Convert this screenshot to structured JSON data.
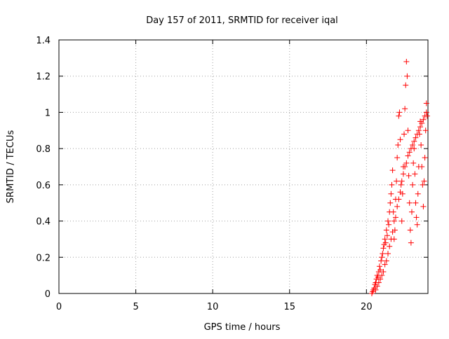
{
  "chart_data": {
    "type": "scatter",
    "title": "Day 157 of 2011, SRMTID for receiver iqal",
    "xlabel": "GPS time / hours",
    "ylabel": "SRMTID / TECUs",
    "xlim": [
      0,
      24
    ],
    "ylim": [
      0,
      1.4
    ],
    "xticks": [
      0,
      5,
      10,
      15,
      20
    ],
    "yticks": [
      0,
      0.2,
      0.4,
      0.6,
      0.8,
      1,
      1.2,
      1.4
    ],
    "xtick_labels": [
      "0",
      "5",
      "10",
      "15",
      "20"
    ],
    "ytick_labels": [
      "0",
      "0.2",
      "0.4",
      "0.6",
      "0.8",
      "1",
      "1.2",
      "1.4"
    ],
    "grid": true,
    "marker": "+",
    "marker_color": "#ff0000",
    "series": [
      {
        "points": [
          [
            20.35,
            0.0
          ],
          [
            20.4,
            0.01
          ],
          [
            20.45,
            0.02
          ],
          [
            20.5,
            0.03
          ],
          [
            20.55,
            0.05
          ],
          [
            20.6,
            0.06
          ],
          [
            20.65,
            0.08
          ],
          [
            20.7,
            0.1
          ],
          [
            20.75,
            0.09
          ],
          [
            20.8,
            0.12
          ],
          [
            20.85,
            0.15
          ],
          [
            20.9,
            0.13
          ],
          [
            20.95,
            0.18
          ],
          [
            21.0,
            0.2
          ],
          [
            21.05,
            0.22
          ],
          [
            21.1,
            0.25
          ],
          [
            21.15,
            0.27
          ],
          [
            21.2,
            0.3
          ],
          [
            21.25,
            0.28
          ],
          [
            21.3,
            0.35
          ],
          [
            21.35,
            0.32
          ],
          [
            21.4,
            0.4
          ],
          [
            21.45,
            0.38
          ],
          [
            21.5,
            0.45
          ],
          [
            21.55,
            0.5
          ],
          [
            21.6,
            0.55
          ],
          [
            21.65,
            0.6
          ],
          [
            21.7,
            0.68
          ],
          [
            21.75,
            0.45
          ],
          [
            21.8,
            0.3
          ],
          [
            21.85,
            0.35
          ],
          [
            21.9,
            0.52
          ],
          [
            21.95,
            0.62
          ],
          [
            22.0,
            0.75
          ],
          [
            22.05,
            0.82
          ],
          [
            22.1,
            0.98
          ],
          [
            22.15,
            1.0
          ],
          [
            22.2,
            0.85
          ],
          [
            22.25,
            0.6
          ],
          [
            22.3,
            0.4
          ],
          [
            22.35,
            0.55
          ],
          [
            22.4,
            0.7
          ],
          [
            22.45,
            0.88
          ],
          [
            22.5,
            1.02
          ],
          [
            22.55,
            1.15
          ],
          [
            22.6,
            1.28
          ],
          [
            22.65,
            1.2
          ],
          [
            22.7,
            0.9
          ],
          [
            22.75,
            0.65
          ],
          [
            22.8,
            0.5
          ],
          [
            22.85,
            0.35
          ],
          [
            22.9,
            0.28
          ],
          [
            22.95,
            0.45
          ],
          [
            23.0,
            0.6
          ],
          [
            23.05,
            0.72
          ],
          [
            23.1,
            0.8
          ],
          [
            23.15,
            0.66
          ],
          [
            23.2,
            0.5
          ],
          [
            23.25,
            0.42
          ],
          [
            23.3,
            0.38
          ],
          [
            23.35,
            0.55
          ],
          [
            23.4,
            0.7
          ],
          [
            23.45,
            0.88
          ],
          [
            23.5,
            0.95
          ],
          [
            23.55,
            0.82
          ],
          [
            23.6,
            0.7
          ],
          [
            23.65,
            0.6
          ],
          [
            23.7,
            0.48
          ],
          [
            23.75,
            0.62
          ],
          [
            23.8,
            0.75
          ],
          [
            23.85,
            0.9
          ],
          [
            23.9,
            1.05
          ],
          [
            23.95,
            0.98
          ],
          [
            20.6,
            0.02
          ],
          [
            20.7,
            0.04
          ],
          [
            20.8,
            0.06
          ],
          [
            20.9,
            0.08
          ],
          [
            21.0,
            0.1
          ],
          [
            21.1,
            0.12
          ],
          [
            21.2,
            0.16
          ],
          [
            21.3,
            0.18
          ],
          [
            21.4,
            0.22
          ],
          [
            21.5,
            0.26
          ],
          [
            21.6,
            0.3
          ],
          [
            21.7,
            0.34
          ],
          [
            21.8,
            0.4
          ],
          [
            21.9,
            0.42
          ],
          [
            22.0,
            0.48
          ],
          [
            22.1,
            0.52
          ],
          [
            22.2,
            0.56
          ],
          [
            22.3,
            0.62
          ],
          [
            22.4,
            0.66
          ],
          [
            22.5,
            0.7
          ],
          [
            22.6,
            0.72
          ],
          [
            22.7,
            0.76
          ],
          [
            22.8,
            0.78
          ],
          [
            22.9,
            0.8
          ],
          [
            23.0,
            0.82
          ],
          [
            23.1,
            0.84
          ],
          [
            23.2,
            0.86
          ],
          [
            23.3,
            0.88
          ],
          [
            23.4,
            0.9
          ],
          [
            23.5,
            0.92
          ],
          [
            23.6,
            0.94
          ],
          [
            23.7,
            0.96
          ],
          [
            23.8,
            0.98
          ],
          [
            23.9,
            1.0
          ]
        ]
      }
    ]
  }
}
